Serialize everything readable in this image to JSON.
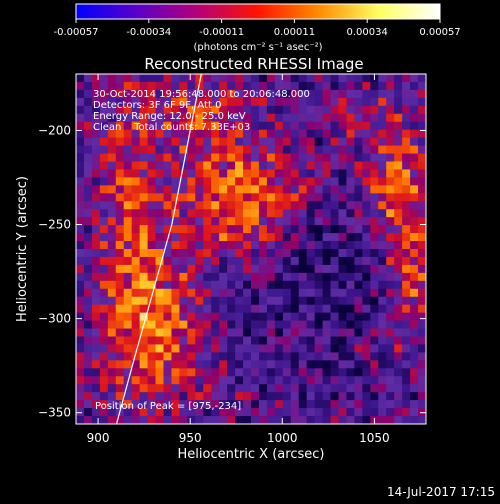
{
  "colorbar": {
    "ticks": [
      "-0.00057",
      "-0.00034",
      "-0.00011",
      "0.00011",
      "0.00034",
      "0.00057"
    ],
    "unit_label": "(photons cm⁻² s⁻¹ asec⁻²)",
    "colors": [
      "#0000ff",
      "#5a00c8",
      "#b40078",
      "#ff1400",
      "#ff8c00",
      "#ffff64",
      "#ffffff"
    ]
  },
  "chart_data": {
    "type": "heatmap",
    "title": "Reconstructed RHESSI Image",
    "xlabel": "Heliocentric X (arcsec)",
    "ylabel": "Heliocentric Y (arcsec)",
    "xlim": [
      888,
      1078
    ],
    "ylim": [
      -356,
      -170
    ],
    "xticks": [
      900,
      950,
      1000,
      1050
    ],
    "yticks": [
      -200,
      -250,
      -300,
      -350
    ],
    "info_lines": [
      "30-Oct-2014 19:56:48.000 to 20:06:48.000",
      "Detectors: 3F 6F 9F, Att 0",
      "Energy Range: 12.0 - 25.0 keV",
      "Clean    Total counts: 7.33E+03"
    ],
    "peak_label": "Position of Peak = [975,-234]",
    "peak": [
      975,
      -234
    ],
    "limb_curve": [
      [
        910,
        -356
      ],
      [
        920,
        -320
      ],
      [
        930,
        -285
      ],
      [
        940,
        -250
      ],
      [
        947,
        -215
      ],
      [
        953,
        -185
      ],
      [
        956,
        -170
      ]
    ]
  },
  "footer": {
    "date": "14-Jul-2017 17:15"
  }
}
